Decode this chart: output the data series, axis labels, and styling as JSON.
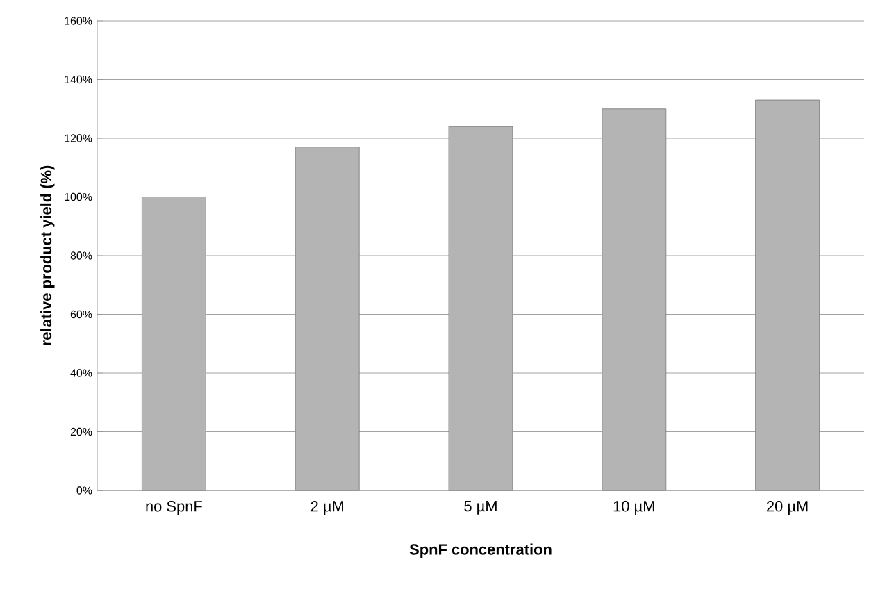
{
  "chart_data": {
    "type": "bar",
    "xlabel": "SpnF concentration",
    "ylabel": "relative product yield (%)",
    "categories": [
      "no SpnF",
      "2 µM",
      "5 µM",
      "10 µM",
      "20 µM"
    ],
    "values": [
      100,
      117,
      124,
      130,
      133
    ],
    "color": "#b4b4b4",
    "ylim": [
      0,
      160
    ],
    "yticks": [
      {
        "value": 0,
        "label": "0%"
      },
      {
        "value": 20,
        "label": "20%"
      },
      {
        "value": 40,
        "label": "40%"
      },
      {
        "value": 60,
        "label": "60%"
      },
      {
        "value": 80,
        "label": "80%"
      },
      {
        "value": 100,
        "label": "100%"
      },
      {
        "value": 120,
        "label": "120%"
      },
      {
        "value": 140,
        "label": "140%"
      },
      {
        "value": 160,
        "label": "160%"
      }
    ],
    "grid": "y"
  }
}
